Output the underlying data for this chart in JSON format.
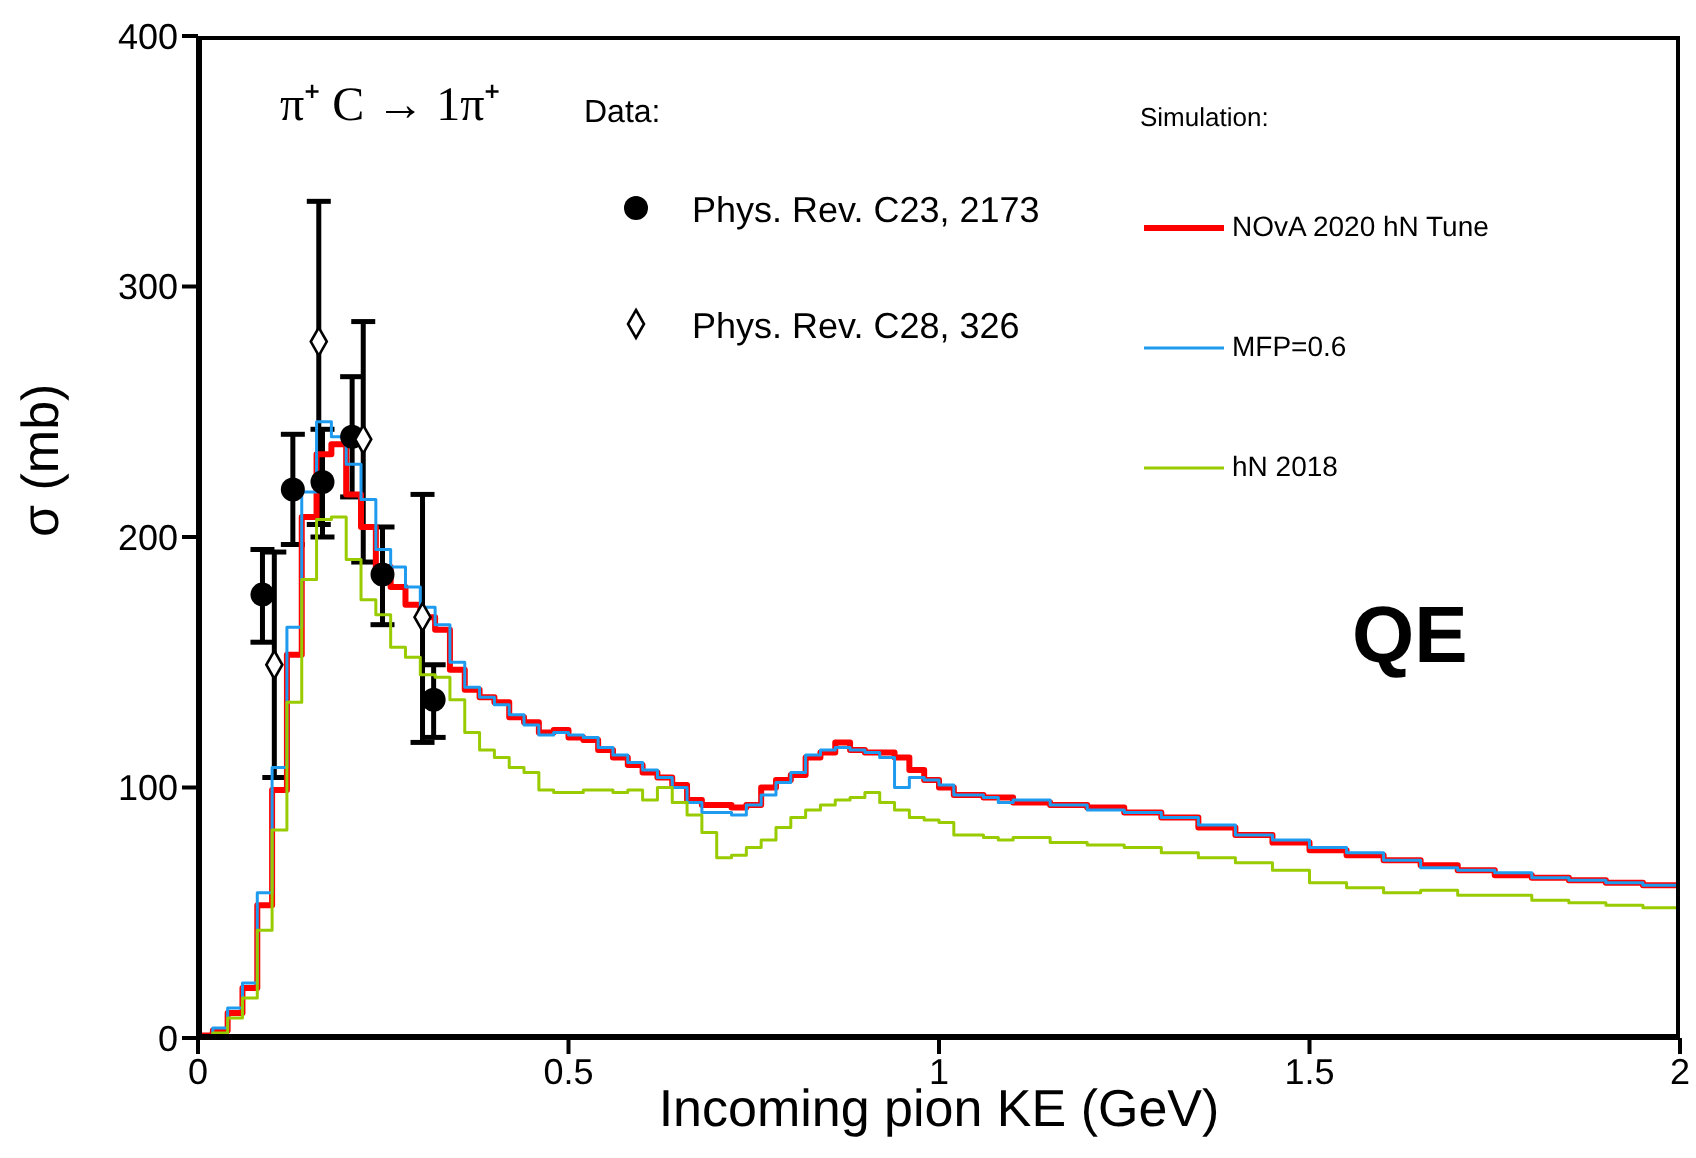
{
  "chart_data": {
    "type": "step",
    "xlabel": "Incoming pion KE (GeV)",
    "ylabel": "σ (mb)",
    "annotations": [
      "π⁺ C → 1π⁺",
      "Data:",
      "Simulation:",
      "QE"
    ],
    "xlim": [
      0,
      2
    ],
    "xticks": [
      0,
      0.5,
      1,
      1.5,
      2
    ],
    "ylim": [
      0,
      400
    ],
    "yticks": [
      0,
      100,
      200,
      300,
      400
    ],
    "grid": false,
    "legend": "top",
    "series": [
      {
        "name": "Phys. Rev. C23, 2173",
        "type": "scatter",
        "marker": "circle",
        "color": "#000000",
        "x": [
          0.087,
          0.128,
          0.168,
          0.208,
          0.249,
          0.318
        ],
        "values": [
          177,
          219,
          222,
          240,
          185,
          135
        ],
        "errors": [
          [
            158,
            195
          ],
          [
            197,
            241
          ],
          [
            200,
            243
          ],
          [
            216,
            264
          ],
          [
            165,
            204
          ],
          [
            120,
            149
          ]
        ]
      },
      {
        "name": "Phys. Rev. C28, 326",
        "type": "scatter",
        "marker": "diamond",
        "color": "#000000",
        "x": [
          0.103,
          0.163,
          0.223,
          0.303
        ],
        "values": [
          149,
          278,
          239,
          168
        ],
        "errors": [
          [
            104,
            194
          ],
          [
            205,
            334
          ],
          [
            190,
            286
          ],
          [
            118,
            217
          ]
        ]
      },
      {
        "name": "NOvA 2020 hN Tune",
        "color": "#ff0000",
        "x": [
          0,
          0.02,
          0.04,
          0.06,
          0.08,
          0.1,
          0.12,
          0.14,
          0.16,
          0.18,
          0.2,
          0.22,
          0.24,
          0.26,
          0.28,
          0.3,
          0.32,
          0.34,
          0.36,
          0.38,
          0.4,
          0.42,
          0.44,
          0.46,
          0.48,
          0.5,
          0.52,
          0.54,
          0.56,
          0.58,
          0.6,
          0.62,
          0.64,
          0.66,
          0.68,
          0.7,
          0.72,
          0.74,
          0.76,
          0.78,
          0.8,
          0.82,
          0.84,
          0.86,
          0.88,
          0.9,
          0.92,
          0.94,
          0.96,
          0.98,
          1.0,
          1.02,
          1.04,
          1.06,
          1.08,
          1.1,
          1.15,
          1.2,
          1.25,
          1.3,
          1.35,
          1.4,
          1.45,
          1.5,
          1.55,
          1.6,
          1.65,
          1.7,
          1.75,
          1.8,
          1.85,
          1.9,
          1.95,
          2.0
        ],
        "values": [
          1,
          3,
          10,
          20,
          53,
          99,
          153,
          208,
          233,
          237,
          217,
          204,
          188,
          180,
          173,
          168,
          163,
          147,
          139,
          136,
          134,
          128,
          126,
          122,
          123,
          120,
          119,
          115,
          112,
          109,
          106,
          104,
          101,
          95,
          93,
          93,
          92,
          93,
          100,
          103,
          105,
          112,
          114,
          118,
          115,
          114,
          114,
          112,
          107,
          103,
          100,
          97,
          97,
          96,
          96,
          94,
          93,
          92,
          90,
          88,
          84,
          81,
          78,
          75,
          73,
          71,
          69,
          67,
          65,
          64,
          63,
          62,
          61,
          61
        ]
      },
      {
        "name": "MFP=0.6",
        "color": "#1e9bef",
        "x": [
          0,
          0.02,
          0.04,
          0.06,
          0.08,
          0.1,
          0.12,
          0.14,
          0.16,
          0.18,
          0.2,
          0.22,
          0.24,
          0.26,
          0.28,
          0.3,
          0.32,
          0.34,
          0.36,
          0.38,
          0.4,
          0.42,
          0.44,
          0.46,
          0.48,
          0.5,
          0.52,
          0.54,
          0.56,
          0.58,
          0.6,
          0.62,
          0.64,
          0.66,
          0.68,
          0.7,
          0.72,
          0.74,
          0.76,
          0.78,
          0.8,
          0.82,
          0.84,
          0.86,
          0.88,
          0.9,
          0.92,
          0.94,
          0.96,
          0.98,
          1.0,
          1.02,
          1.04,
          1.06,
          1.08,
          1.1,
          1.15,
          1.2,
          1.25,
          1.3,
          1.35,
          1.4,
          1.45,
          1.5,
          1.55,
          1.6,
          1.65,
          1.7,
          1.75,
          1.8,
          1.85,
          1.9,
          1.95,
          2.0
        ],
        "values": [
          1,
          4,
          12,
          22,
          58,
          108,
          164,
          218,
          246,
          240,
          229,
          215,
          195,
          188,
          180,
          172,
          165,
          150,
          140,
          136,
          133,
          129,
          125,
          121,
          122,
          121,
          120,
          116,
          113,
          110,
          107,
          104,
          100,
          94,
          90,
          90,
          89,
          93,
          97,
          102,
          106,
          113,
          115,
          116,
          115,
          114,
          112,
          100,
          104,
          103,
          101,
          97,
          97,
          96,
          94,
          95,
          93,
          91,
          90,
          88,
          85,
          81,
          79,
          76,
          74,
          71,
          68,
          67,
          66,
          64,
          63,
          62,
          61,
          61
        ]
      },
      {
        "name": "hN 2018",
        "color": "#99cc00",
        "x": [
          0,
          0.02,
          0.04,
          0.06,
          0.08,
          0.1,
          0.12,
          0.14,
          0.16,
          0.18,
          0.2,
          0.22,
          0.24,
          0.26,
          0.28,
          0.3,
          0.32,
          0.34,
          0.36,
          0.38,
          0.4,
          0.42,
          0.44,
          0.46,
          0.48,
          0.5,
          0.52,
          0.54,
          0.56,
          0.58,
          0.6,
          0.62,
          0.64,
          0.66,
          0.68,
          0.7,
          0.72,
          0.74,
          0.76,
          0.78,
          0.8,
          0.82,
          0.84,
          0.86,
          0.88,
          0.9,
          0.92,
          0.94,
          0.96,
          0.98,
          1.0,
          1.02,
          1.04,
          1.06,
          1.08,
          1.1,
          1.15,
          1.2,
          1.25,
          1.3,
          1.35,
          1.4,
          1.45,
          1.5,
          1.55,
          1.6,
          1.65,
          1.7,
          1.75,
          1.8,
          1.85,
          1.9,
          1.95,
          2.0
        ],
        "values": [
          1,
          2,
          8,
          16,
          43,
          83,
          134,
          183,
          207,
          208,
          191,
          175,
          169,
          156,
          152,
          145,
          144,
          135,
          122,
          115,
          112,
          108,
          106,
          99,
          98,
          98,
          99,
          99,
          98,
          99,
          95,
          100,
          94,
          89,
          82,
          72,
          73,
          76,
          79,
          84,
          88,
          91,
          93,
          95,
          96,
          98,
          94,
          91,
          88,
          87,
          86,
          81,
          81,
          80,
          79,
          80,
          78,
          77,
          76,
          74,
          72,
          70,
          67,
          62,
          60,
          58,
          59,
          57,
          57,
          55,
          54,
          53,
          52,
          50
        ]
      }
    ]
  }
}
